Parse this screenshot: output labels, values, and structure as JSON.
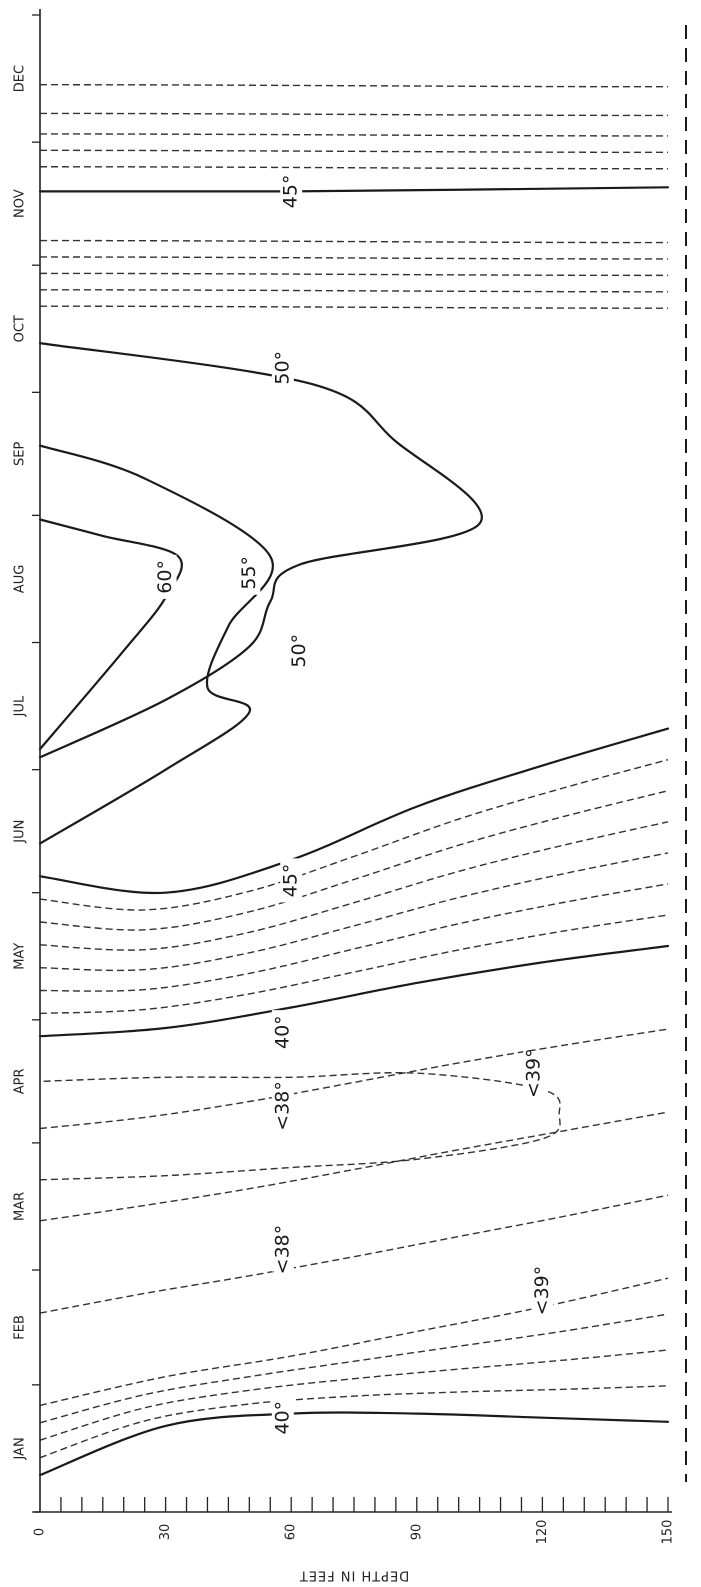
{
  "chart_data": {
    "type": "contour",
    "xlabel": "DEPTH IN FEET",
    "x_ticks": [
      "0",
      "30",
      "60",
      "90",
      "120",
      "150"
    ],
    "xlim": [
      0,
      150
    ],
    "months": [
      "JAN",
      "FEB",
      "MAR",
      "APR",
      "MAY",
      "JUN",
      "JUL",
      "AUG",
      "SEP",
      "OCT",
      "NOV",
      "DEC"
    ],
    "isotherm_labels": [
      "40°",
      "<39°",
      "<38°",
      "<38°",
      "<39°",
      "40°",
      "45°",
      "50°",
      "55°",
      "60°",
      "50°",
      "45°"
    ],
    "isotherms": [
      {
        "name": "40°",
        "style": "solid",
        "points": [
          [
            0,
            "Jan 10"
          ],
          [
            30,
            "Jan 22"
          ],
          [
            60,
            "Jan 25"
          ],
          [
            90,
            "Jan 25"
          ],
          [
            120,
            "Jan 24"
          ],
          [
            150,
            "Jan 23"
          ]
        ]
      },
      {
        "name": "<39°",
        "style": "dashed",
        "points": [
          [
            0,
            "Jan 27"
          ],
          [
            30,
            "Feb 3"
          ],
          [
            60,
            "Feb 8"
          ],
          [
            90,
            "Feb 14"
          ],
          [
            120,
            "Feb 20"
          ],
          [
            150,
            "Feb 27"
          ]
        ]
      },
      {
        "name": "<38°",
        "style": "dashed",
        "points": [
          [
            0,
            "Mar 23"
          ],
          [
            30,
            "Mar 24"
          ],
          [
            60,
            "Mar 26"
          ],
          [
            90,
            "Mar 28"
          ],
          [
            120,
            "Apr 2"
          ],
          [
            124,
            "Apr 8"
          ],
          [
            120,
            "Apr 14"
          ],
          [
            90,
            "Apr 18"
          ],
          [
            60,
            "Apr 17"
          ],
          [
            30,
            "Apr 17"
          ],
          [
            0,
            "Apr 16"
          ]
        ]
      },
      {
        "name": "40°",
        "style": "solid",
        "points": [
          [
            0,
            "Apr 27"
          ],
          [
            30,
            "Apr 29"
          ],
          [
            60,
            "May 4"
          ],
          [
            90,
            "May 10"
          ],
          [
            120,
            "May 15"
          ],
          [
            150,
            "May 19"
          ]
        ]
      },
      {
        "name": "45°",
        "style": "solid",
        "points": [
          [
            0,
            "Jun 5"
          ],
          [
            30,
            "Jun 1"
          ],
          [
            60,
            "Jun 9"
          ],
          [
            90,
            "Jun 22"
          ],
          [
            120,
            "Jul 2"
          ],
          [
            150,
            "Jul 11"
          ]
        ]
      },
      {
        "name": "50°",
        "style": "solid",
        "points": [
          [
            0,
            "Jul 4"
          ],
          [
            30,
            "Jul 18"
          ],
          [
            50,
            "Jul 31"
          ],
          [
            55,
            "Aug 11"
          ],
          [
            62,
            "Aug 20"
          ],
          [
            105,
            "Aug 30"
          ],
          [
            85,
            "Sep 19"
          ],
          [
            65,
            "Oct 3"
          ],
          [
            0,
            "Oct 13"
          ]
        ]
      },
      {
        "name": "55°",
        "style": "solid",
        "points": [
          [
            0,
            "Jun 13"
          ],
          [
            30,
            "Jul 1"
          ],
          [
            50,
            "Jul 15"
          ],
          [
            40,
            "Jul 21"
          ],
          [
            45,
            "Aug 5"
          ],
          [
            55,
            "Aug 22"
          ],
          [
            25,
            "Sep 10"
          ],
          [
            0,
            "Sep 18"
          ]
        ]
      },
      {
        "name": "60°",
        "style": "solid",
        "points": [
          [
            0,
            "Jul 6"
          ],
          [
            20,
            "Jul 30"
          ],
          [
            30,
            "Aug 12"
          ],
          [
            33,
            "Aug 22"
          ],
          [
            15,
            "Aug 27"
          ],
          [
            0,
            "Aug 31"
          ]
        ]
      },
      {
        "name": "45°",
        "style": "solid",
        "points": [
          [
            0,
            "Nov 19"
          ],
          [
            60,
            "Nov 19"
          ],
          [
            150,
            "Nov 20"
          ]
        ]
      }
    ]
  }
}
